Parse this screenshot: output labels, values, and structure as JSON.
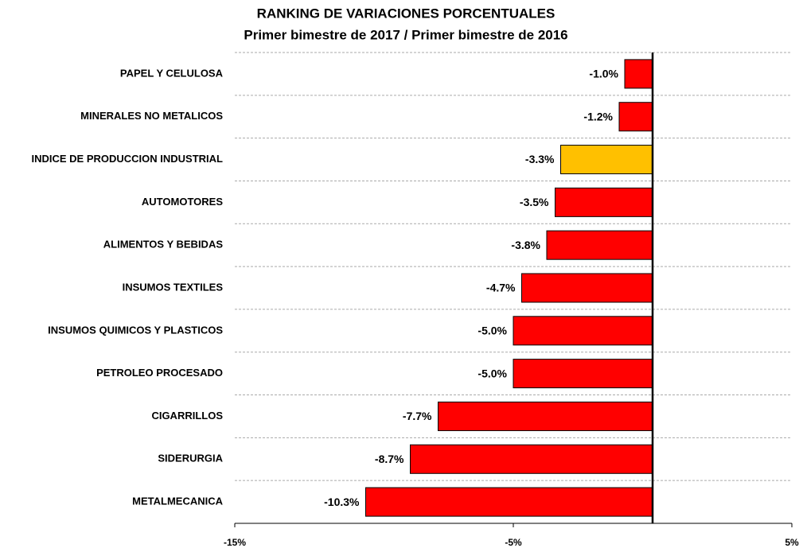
{
  "chart_data": {
    "type": "barh",
    "title": "RANKING DE VARIACIONES PORCENTUALES",
    "subtitle": "Primer bimestre de 2017 / Primer bimestre de 2016",
    "categories": [
      "PAPEL Y CELULOSA",
      "MINERALES NO METALICOS",
      "INDICE DE PRODUCCION INDUSTRIAL",
      "AUTOMOTORES",
      "ALIMENTOS Y BEBIDAS",
      "INSUMOS TEXTILES",
      "INSUMOS QUIMICOS Y PLASTICOS",
      "PETROLEO PROCESADO",
      "CIGARRILLOS",
      "SIDERURGIA",
      "METALMECANICA"
    ],
    "values": [
      -1.0,
      -1.2,
      -3.3,
      -3.5,
      -3.8,
      -4.7,
      -5.0,
      -5.0,
      -7.7,
      -8.7,
      -10.3
    ],
    "value_labels": [
      "-1.0%",
      "-1.2%",
      "-3.3%",
      "-3.5%",
      "-3.8%",
      "-4.7%",
      "-5.0%",
      "-5.0%",
      "-7.7%",
      "-8.7%",
      "-10.3%"
    ],
    "colors": [
      "#ff0000",
      "#ff0000",
      "#ffc000",
      "#ff0000",
      "#ff0000",
      "#ff0000",
      "#ff0000",
      "#ff0000",
      "#ff0000",
      "#ff0000",
      "#ff0000"
    ],
    "xlim": [
      -15,
      5
    ],
    "xticks": [
      {
        "value": -15,
        "label": "-15%"
      },
      {
        "value": -5,
        "label": "-5%"
      },
      {
        "value": 5,
        "label": "5%"
      }
    ],
    "grid": true
  }
}
